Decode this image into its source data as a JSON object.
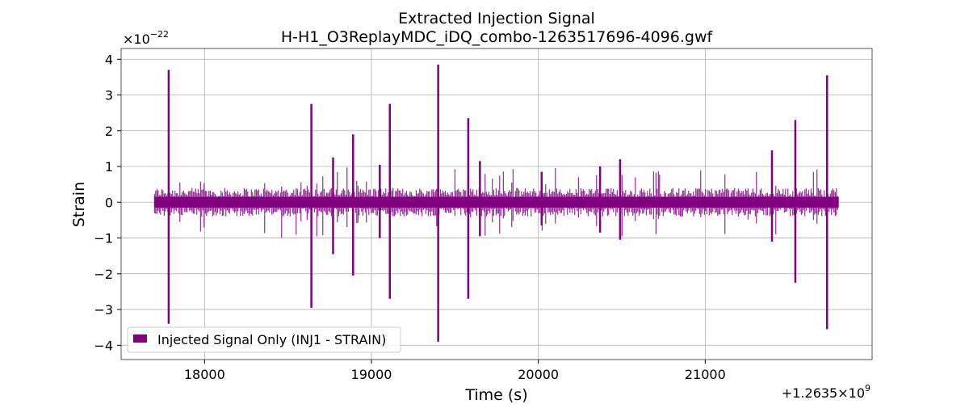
{
  "chart_data": {
    "type": "line",
    "title": "Extracted Injection Signal",
    "subtitle": "H-H1_O3ReplayMDC_iDQ_combo-1263517696-4096.gwf",
    "xlabel": "Time (s)",
    "ylabel": "Strain",
    "x_offset_label": "+1.2635×10",
    "x_offset_exp": "9",
    "y_scale_label": "×10",
    "y_scale_exp": "−22",
    "xlim": [
      17500,
      22000
    ],
    "ylim": [
      -4.4,
      4.3
    ],
    "x_ticks": [
      18000,
      19000,
      20000,
      21000
    ],
    "x_tick_labels": [
      "18000",
      "19000",
      "20000",
      "21000"
    ],
    "y_ticks": [
      -4,
      -3,
      -2,
      -1,
      0,
      1,
      2,
      3,
      4
    ],
    "y_tick_labels": [
      "−4",
      "−3",
      "−2",
      "−1",
      "0",
      "1",
      "2",
      "3",
      "4"
    ],
    "grid": true,
    "legend_position": "lower-left",
    "series": [
      {
        "name": "Injected Signal Only (INJ1 - STRAIN)",
        "color": "#800080",
        "x_range": [
          17700,
          21800
        ],
        "noise_band": [
          -0.15,
          0.15
        ],
        "spikes": [
          {
            "x": 17785,
            "max": 3.7,
            "min": -3.4
          },
          {
            "x": 18640,
            "max": 2.75,
            "min": -2.95
          },
          {
            "x": 18770,
            "max": 1.25,
            "min": -1.45
          },
          {
            "x": 18890,
            "max": 1.9,
            "min": -2.05
          },
          {
            "x": 19050,
            "max": 1.05,
            "min": -1.0
          },
          {
            "x": 19110,
            "max": 2.75,
            "min": -2.7
          },
          {
            "x": 19400,
            "max": 3.85,
            "min": -3.9
          },
          {
            "x": 19580,
            "max": 2.35,
            "min": -2.7
          },
          {
            "x": 19650,
            "max": 1.15,
            "min": -0.95
          },
          {
            "x": 20020,
            "max": 0.85,
            "min": -0.65
          },
          {
            "x": 20370,
            "max": 1.0,
            "min": -0.85
          },
          {
            "x": 20490,
            "max": 1.2,
            "min": -1.05
          },
          {
            "x": 21400,
            "max": 1.45,
            "min": -1.1
          },
          {
            "x": 21540,
            "max": 2.3,
            "min": -2.25
          },
          {
            "x": 21730,
            "max": 3.55,
            "min": -3.55
          }
        ]
      }
    ]
  }
}
